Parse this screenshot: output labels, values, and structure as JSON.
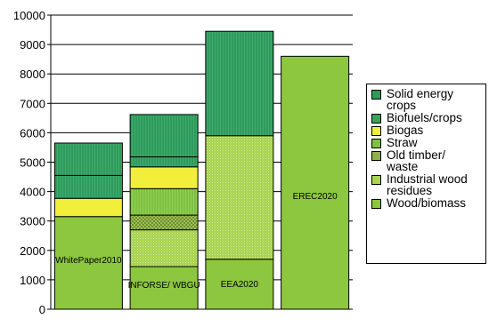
{
  "chart_data": {
    "type": "bar",
    "stacked": true,
    "categories": [
      "WhitePaper2010",
      "INFORSE/ WBGU",
      "EEA2020",
      "EREC2020"
    ],
    "ylim": [
      0,
      10000
    ],
    "yticks": [
      0,
      1000,
      2000,
      3000,
      4000,
      5000,
      6000,
      7000,
      8000,
      9000,
      10000
    ],
    "grid": true,
    "legend_position": "right",
    "series": [
      {
        "name": "Wood/biomass",
        "color": "#8dc63f",
        "pattern": "solid",
        "values": [
          3150,
          1450,
          1700,
          8600
        ]
      },
      {
        "name": "Industrial wood residues",
        "color": "#a9d454",
        "pattern": "dots",
        "values": [
          0,
          1250,
          4200,
          0
        ]
      },
      {
        "name": "Old timber/ waste",
        "color": "#8fb04a",
        "pattern": "checker",
        "values": [
          0,
          500,
          0,
          0
        ]
      },
      {
        "name": "Straw",
        "color": "#7ec040",
        "pattern": "hatch",
        "values": [
          0,
          900,
          0,
          0
        ]
      },
      {
        "name": "Biogas",
        "color": "#f2ef3a",
        "pattern": "solid",
        "values": [
          620,
          740,
          0,
          0
        ]
      },
      {
        "name": "Biofuels/crops",
        "color": "#3aa05e",
        "pattern": "hatch",
        "values": [
          780,
          340,
          0,
          0
        ]
      },
      {
        "name": "Solid energy crops",
        "color": "#2e9a5c",
        "pattern": "hatch",
        "values": [
          1100,
          1440,
          3550,
          0
        ]
      }
    ]
  },
  "legend": {
    "items": [
      {
        "label": "Solid energy\ncrops",
        "color": "#2e9a5c"
      },
      {
        "label": "Biofuels/crops",
        "color": "#3aa05e"
      },
      {
        "label": "Biogas",
        "color": "#f2ef3a"
      },
      {
        "label": "Straw",
        "color": "#7ec040"
      },
      {
        "label": "Old timber/\nwaste",
        "color": "#8fb04a"
      },
      {
        "label": "Industrial wood\nresidues",
        "color": "#a9d454"
      },
      {
        "label": "Wood/biomass",
        "color": "#8dc63f"
      }
    ]
  }
}
